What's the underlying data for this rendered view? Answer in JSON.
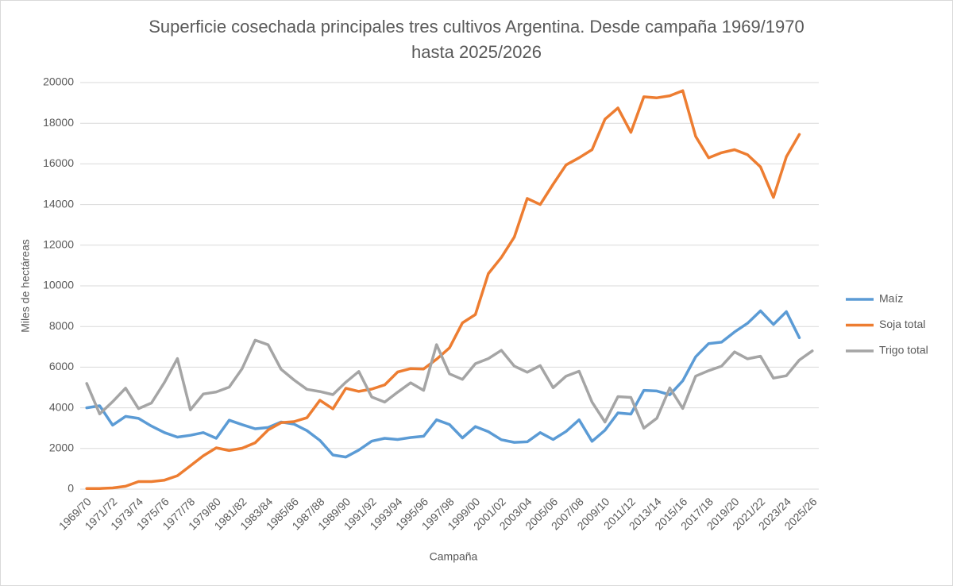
{
  "chart_data": {
    "type": "line",
    "title": "Superficie cosechada principales tres cultivos Argentina. Desde campaña 1969/1970 hasta 2025/2026",
    "title_lines": [
      "Superficie cosechada principales tres cultivos Argentina. Desde campaña 1969/1970",
      "hasta 2025/2026"
    ],
    "x_label": "Campaña",
    "y_label": "Miles de hectáreas",
    "categories": [
      "1969/70",
      null,
      "1971/72",
      null,
      "1973/74",
      null,
      "1975/76",
      null,
      "1977/78",
      null,
      "1979/80",
      null,
      "1981/82",
      null,
      "1983/84",
      null,
      "1985/86",
      null,
      "1987/88",
      null,
      "1989/90",
      null,
      "1991/92",
      null,
      "1993/94",
      null,
      "1995/96",
      null,
      "1997/98",
      null,
      "1999/00",
      null,
      "2001/02",
      null,
      "2003/04",
      null,
      "2005/06",
      null,
      "2007/08",
      null,
      "2009/10",
      null,
      "2011/12",
      null,
      "2013/14",
      null,
      "2015/16",
      null,
      "2017/18",
      null,
      "2019/20",
      null,
      "2021/22",
      null,
      "2023/24",
      null,
      "2025/26"
    ],
    "series": [
      {
        "name": "Maíz",
        "color": "#5b9bd5",
        "values": [
          4000,
          4100,
          3150,
          3580,
          3480,
          3100,
          2780,
          2560,
          2650,
          2780,
          2500,
          3390,
          3170,
          2970,
          3030,
          3300,
          3200,
          2880,
          2400,
          1680,
          1580,
          1920,
          2360,
          2500,
          2440,
          2540,
          2600,
          3410,
          3180,
          2520,
          3080,
          2830,
          2430,
          2300,
          2330,
          2780,
          2440,
          2840,
          3410,
          2350,
          2900,
          3750,
          3690,
          4860,
          4830,
          4640,
          5330,
          6510,
          7160,
          7230,
          7730,
          8160,
          8770,
          8100,
          8730,
          7450,
          null
        ]
      },
      {
        "name": "Soja total",
        "color": "#ed7d31",
        "values": [
          30,
          30,
          60,
          140,
          370,
          370,
          440,
          660,
          1150,
          1640,
          2030,
          1900,
          2010,
          2280,
          2910,
          3270,
          3320,
          3510,
          4370,
          3950,
          4960,
          4810,
          4920,
          5130,
          5760,
          5930,
          5910,
          6390,
          6950,
          8180,
          8590,
          10600,
          11400,
          12400,
          14300,
          14000,
          15000,
          15950,
          16300,
          16700,
          18200,
          18750,
          17550,
          19300,
          19250,
          19350,
          19600,
          17350,
          16300,
          16550,
          16700,
          16450,
          15850,
          14350,
          16350,
          17450,
          null
        ]
      },
      {
        "name": "Trigo total",
        "color": "#a5a5a5",
        "values": [
          5200,
          3700,
          4300,
          4970,
          3960,
          4240,
          5250,
          6420,
          3900,
          4680,
          4780,
          5020,
          5930,
          7330,
          7100,
          5900,
          5370,
          4910,
          4800,
          4650,
          5260,
          5790,
          4530,
          4280,
          4770,
          5230,
          4860,
          7110,
          5670,
          5400,
          6170,
          6420,
          6830,
          6050,
          5750,
          6080,
          4990,
          5560,
          5800,
          4280,
          3300,
          4550,
          4510,
          3000,
          3490,
          4980,
          3970,
          5560,
          5830,
          6050,
          6750,
          6410,
          6540,
          5460,
          5580,
          6350,
          6800
        ]
      }
    ],
    "ylim": [
      0,
      20000
    ],
    "yticks": [
      0,
      2000,
      4000,
      6000,
      8000,
      10000,
      12000,
      14000,
      16000,
      18000,
      20000
    ],
    "grid": true,
    "legend": "right"
  }
}
